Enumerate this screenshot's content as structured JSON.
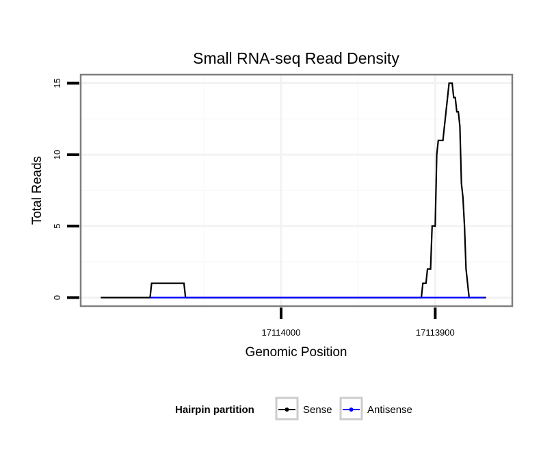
{
  "chart_data": {
    "type": "line",
    "title": "Small RNA-seq Read Density",
    "xlabel": "Genomic Position",
    "ylabel": "Total Reads",
    "x_reversed": true,
    "xlim": [
      17114130,
      17113850
    ],
    "ylim": [
      -0.6,
      15.6
    ],
    "x_ticks": [
      17114000,
      17113900
    ],
    "x_tick_labels": [
      "17114000",
      "17113900"
    ],
    "y_ticks": [
      0,
      5,
      10,
      15
    ],
    "y_tick_labels": [
      "0",
      "5",
      "10",
      "15"
    ],
    "grid": true,
    "legend": {
      "title": "Hairpin partition",
      "position": "bottom",
      "items": [
        {
          "label": "Sense",
          "color": "#000000"
        },
        {
          "label": "Antisense",
          "color": "#0000ff"
        }
      ]
    },
    "series": [
      {
        "name": "Sense",
        "color": "#000000",
        "points": [
          [
            17114117,
            0
          ],
          [
            17114085,
            0
          ],
          [
            17114084,
            1
          ],
          [
            17114063,
            1
          ],
          [
            17114062,
            0
          ],
          [
            17113910,
            0
          ],
          [
            17113909,
            0
          ],
          [
            17113908,
            1
          ],
          [
            17113906,
            1
          ],
          [
            17113905,
            2
          ],
          [
            17113903,
            2
          ],
          [
            17113902,
            5
          ],
          [
            17113900,
            5
          ],
          [
            17113899,
            10
          ],
          [
            17113898,
            11
          ],
          [
            17113895,
            11
          ],
          [
            17113894,
            12
          ],
          [
            17113893,
            13
          ],
          [
            17113892,
            14
          ],
          [
            17113891,
            15
          ],
          [
            17113889,
            15
          ],
          [
            17113888,
            14
          ],
          [
            17113887,
            14
          ],
          [
            17113886,
            13
          ],
          [
            17113885,
            13
          ],
          [
            17113884,
            12
          ],
          [
            17113883,
            8
          ],
          [
            17113882,
            7
          ],
          [
            17113881,
            5
          ],
          [
            17113880,
            2
          ],
          [
            17113878,
            0
          ],
          [
            17113867,
            0
          ]
        ]
      },
      {
        "name": "Antisense",
        "color": "#0000ff",
        "points": [
          [
            17114085,
            0
          ],
          [
            17114062,
            0
          ],
          [
            17113910,
            0
          ],
          [
            17113868,
            0
          ]
        ]
      }
    ]
  }
}
